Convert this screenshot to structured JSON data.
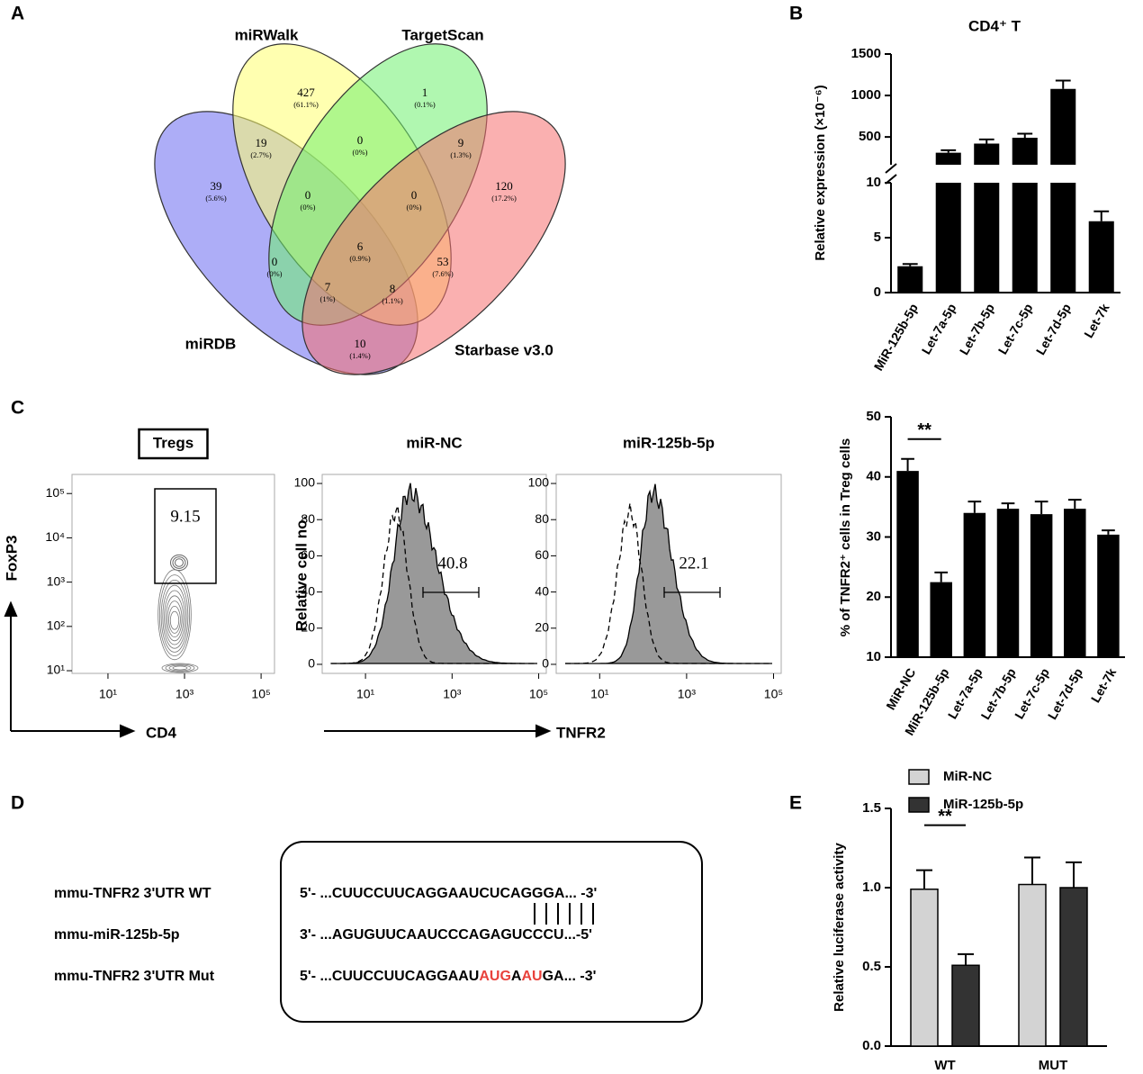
{
  "panel_labels": [
    "A",
    "B",
    "C",
    "D",
    "E"
  ],
  "venn": {
    "sets": [
      {
        "name": "miRDB",
        "fill": "#6a6af0",
        "label_color": "#2a2ab0"
      },
      {
        "name": "miRWalk",
        "fill": "#ffff70",
        "label_color": "#c8c832"
      },
      {
        "name": "TargetScan",
        "fill": "#70f070",
        "label_color": "#22bb22"
      },
      {
        "name": "Starbase v3.0",
        "fill": "#f57070",
        "label_color": "#e85a5a"
      }
    ],
    "regions": [
      {
        "count": 427,
        "percent": "(61.1%)"
      },
      {
        "count": 1,
        "percent": "(0.1%)"
      },
      {
        "count": 39,
        "percent": "(5.6%)"
      },
      {
        "count": 120,
        "percent": "(17.2%)"
      },
      {
        "count": 19,
        "percent": "(2.7%)"
      },
      {
        "count": 0,
        "percent": "(0%)"
      },
      {
        "count": 9,
        "percent": "(1.3%)"
      },
      {
        "count": 0,
        "percent": "(0%)"
      },
      {
        "count": 0,
        "percent": "(0%)"
      },
      {
        "count": 6,
        "percent": "(0.9%)"
      },
      {
        "count": 0,
        "percent": "(0%)"
      },
      {
        "count": 53,
        "percent": "(7.6%)"
      },
      {
        "count": 7,
        "percent": "(1%)"
      },
      {
        "count": 8,
        "percent": "(1.1%)"
      },
      {
        "count": 10,
        "percent": "(1.4%)"
      }
    ]
  },
  "chart_data": [
    {
      "type": "bar",
      "title": "CD4⁺ T",
      "y_label": "Relative expression (×10⁻⁶)",
      "categories": [
        "MiR-125b-5p",
        "Let-7a-5p",
        "Let-7b-5p",
        "Let-7c-5p",
        "Let-7d-5p",
        "Let-7k"
      ],
      "values": [
        2.4,
        310,
        420,
        490,
        1080,
        6.5
      ],
      "errors": [
        0.2,
        30,
        50,
        50,
        100,
        0.9
      ],
      "color": "#000000",
      "segments": [
        {
          "ylim": [
            0,
            10
          ],
          "yticks": [
            0,
            5,
            10
          ]
        },
        {
          "ylim": [
            165,
            1500
          ],
          "yticks": [
            500,
            1000,
            1500
          ]
        }
      ]
    },
    {
      "type": "bar",
      "y_label": "% of TNFR2⁺ cells in Treg cells",
      "categories": [
        "MiR-NC",
        "MiR-125b-5p",
        "Let-7a-5p",
        "Let-7b-5p",
        "Let-7c-5p",
        "Let-7d-5p",
        "Let-7k"
      ],
      "values": [
        41,
        22.5,
        34,
        34.7,
        33.8,
        34.7,
        30.4
      ],
      "errors": [
        2,
        1.6,
        1.9,
        0.9,
        2.1,
        1.5,
        0.7
      ],
      "color": "#000000",
      "ylim": [
        10,
        50
      ],
      "yticks": [
        10,
        20,
        30,
        40,
        50
      ],
      "significance": "**"
    },
    {
      "type": "grouped_bar",
      "y_label": "Relative luciferase activity",
      "categories": [
        "WT",
        "MUT"
      ],
      "series": [
        {
          "name": "MiR-NC",
          "color": "#d3d3d3",
          "values": [
            0.99,
            1.02
          ],
          "errors": [
            0.12,
            0.17
          ]
        },
        {
          "name": "MiR-125b-5p",
          "color": "#333333",
          "values": [
            0.51,
            1.0
          ],
          "errors": [
            0.07,
            0.16
          ]
        }
      ],
      "ylim": [
        0,
        1.5
      ],
      "yticks": [
        {
          "value": 0,
          "label": "0.0"
        },
        {
          "value": 0.5,
          "label": "0.5"
        },
        {
          "value": 1,
          "label": "1.0"
        },
        {
          "value": 1.5,
          "label": "1.5"
        }
      ],
      "significance": "**"
    }
  ],
  "flow": {
    "axis_labels": {
      "foxp3": "FoxP3",
      "cd4": "CD4",
      "cell_no": "Relative cell no.",
      "tnfr2": "TNFR2"
    },
    "plots": [
      {
        "title": "Tregs",
        "gate": 9.15,
        "xlim": [
          1.15,
          224000
        ],
        "xticks": [
          {
            "value": 10,
            "label": "10¹"
          },
          {
            "value": 1000,
            "label": "10³"
          },
          {
            "value": 100000,
            "label": "10⁵"
          }
        ],
        "ylim": [
          8.7,
          270000
        ],
        "yticks": [
          {
            "value": 10,
            "label": "10¹"
          },
          {
            "value": 100,
            "label": "10²"
          },
          {
            "value": 1000,
            "label": "10³"
          },
          {
            "value": 10000,
            "label": "10⁴"
          },
          {
            "value": 100000,
            "label": "10⁵"
          }
        ]
      },
      {
        "title": "miR-NC",
        "gate": 40.8,
        "xlim": [
          1,
          150000
        ],
        "xticks": [
          {
            "value": 10,
            "label": "10¹"
          },
          {
            "value": 1000,
            "label": "10³"
          },
          {
            "value": 100000,
            "label": "10⁵"
          }
        ],
        "ylim": [
          -5,
          105
        ],
        "yticks": [
          0,
          20,
          40,
          60,
          80,
          100
        ]
      },
      {
        "title": "miR-125b-5p",
        "gate": 22.1,
        "xlim": [
          1,
          150000
        ],
        "xticks": [
          {
            "value": 10,
            "label": "10¹"
          },
          {
            "value": 1000,
            "label": "10³"
          },
          {
            "value": 100000,
            "label": "10⁵"
          }
        ],
        "ylim": [
          -5,
          105
        ],
        "yticks": [
          0,
          20,
          40,
          60,
          80,
          100
        ]
      }
    ]
  },
  "sequence": {
    "rows": [
      {
        "label": "mmu-TNFR2 3'UTR WT",
        "segments": [
          {
            "text": "5'- ...CUUCCUUCAGGAAUCUCAGGGA... -3'",
            "color": "#000000"
          }
        ]
      },
      {
        "label": "mmu-miR-125b-5p",
        "segments": [
          {
            "text": "3'- ...AGUGUUCAAUCCCAGAGUCCCU...-5'",
            "color": "#000000"
          }
        ]
      },
      {
        "label": "mmu-TNFR2 3'UTR Mut",
        "segments": [
          {
            "text": "5'- ...CUUCCUUCAGGAAU",
            "color": "#000000"
          },
          {
            "text": "AUG",
            "color": "#e8423c"
          },
          {
            "text": "A",
            "color": "#000000"
          },
          {
            "text": "AU",
            "color": "#e8423c"
          },
          {
            "text": "GA... -3'",
            "color": "#000000"
          }
        ]
      }
    ]
  }
}
